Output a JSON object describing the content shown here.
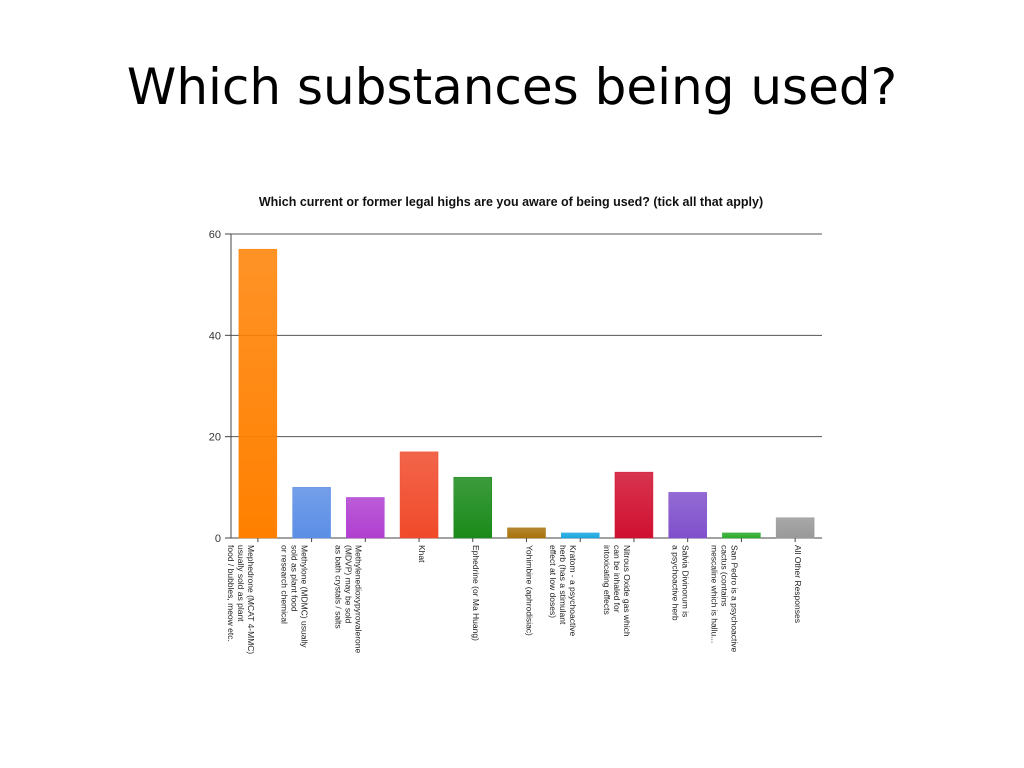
{
  "slide": {
    "title": "Which substances being used?"
  },
  "chart_data": {
    "type": "bar",
    "title": "Which current or former legal highs are you aware of being used? (tick all that apply)",
    "xlabel": "",
    "ylabel": "",
    "ylim": [
      0,
      60
    ],
    "yticks": [
      0,
      20,
      40,
      60
    ],
    "grid": true,
    "categories": [
      [
        "Mephedrone (MCAT 4-MMC)",
        "usually sold as plant",
        "food / bubbles, meow etc."
      ],
      [
        "Methylone (MDMC) usually",
        "sold as plant food",
        "or research chemical"
      ],
      [
        "Methylenedioxypyrovalerone",
        "(MDVP) may be sold",
        "as bath crystals / salts"
      ],
      [
        "Khat"
      ],
      [
        "Ephedrine (or Ma Huang)"
      ],
      [
        "Yohimbine (aphrodisiac)"
      ],
      [
        "Kratom - a psychoactive",
        "herb (has a stimulant",
        "effect at low doses)"
      ],
      [
        "Nitrous Oxide gas which",
        "can be inhaled for",
        "intoxicating effects"
      ],
      [
        "Salvia Divinorum is",
        "a psychoactive herb"
      ],
      [
        "San Pedro is a psychoactive",
        "cactus (contains",
        "mescaline which is hallu..."
      ],
      [
        "All Other Responses"
      ]
    ],
    "values": [
      57,
      10,
      8,
      17,
      12,
      2,
      1,
      13,
      9,
      1,
      4
    ],
    "colors": [
      "#ff8000",
      "#5b8ee6",
      "#b03fd0",
      "#f04a2a",
      "#1a8a1a",
      "#a8720c",
      "#1aa6e0",
      "#d01030",
      "#8050cc",
      "#2aaa2a",
      "#999999"
    ]
  }
}
